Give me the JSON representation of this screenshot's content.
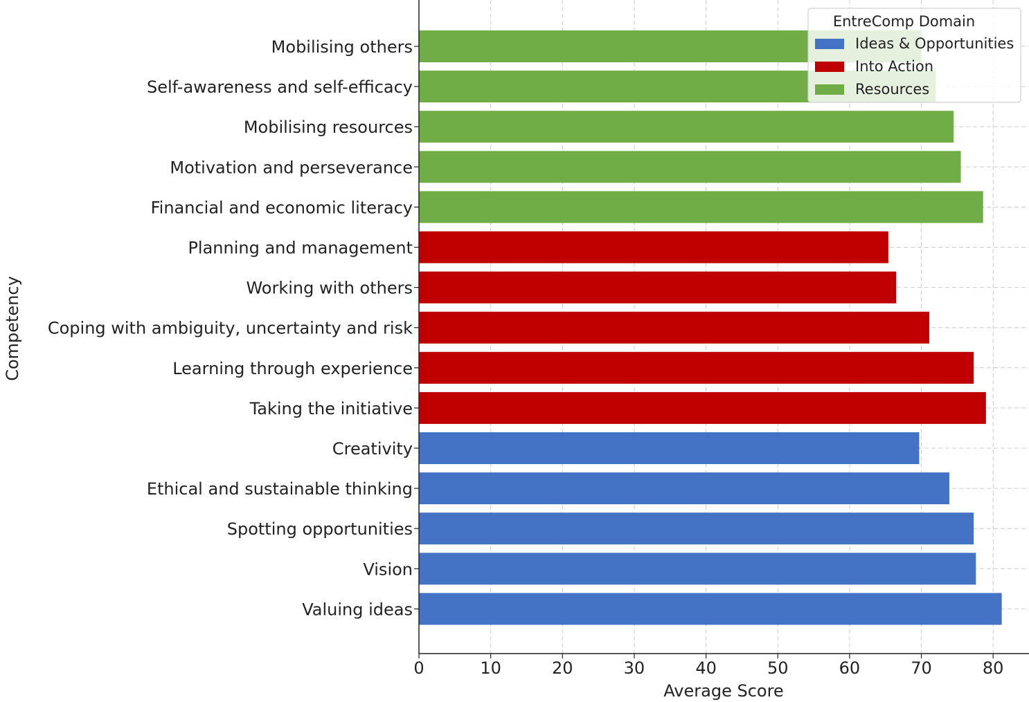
{
  "chart_data": {
    "type": "bar",
    "orientation": "horizontal",
    "xlabel": "Average Score",
    "ylabel": "Competency",
    "xlim": [
      0,
      85
    ],
    "xticks": [
      0,
      10,
      20,
      30,
      40,
      50,
      60,
      70,
      80
    ],
    "grid": true,
    "legend": {
      "title": "EntreComp Domain",
      "placement": "top-right",
      "entries": [
        {
          "name": "Ideas & Opportunities",
          "color": "#4472c4"
        },
        {
          "name": "Into Action",
          "color": "#c00000"
        },
        {
          "name": "Resources",
          "color": "#70ad47"
        }
      ]
    },
    "bars": [
      {
        "category": "Mobilising others",
        "value": 70.0,
        "domain": "Resources"
      },
      {
        "category": "Self-awareness and self-efficacy",
        "value": 72.0,
        "domain": "Resources"
      },
      {
        "category": "Mobilising resources",
        "value": 74.5,
        "domain": "Resources"
      },
      {
        "category": "Motivation and perseverance",
        "value": 75.5,
        "domain": "Resources"
      },
      {
        "category": "Financial and economic literacy",
        "value": 78.6,
        "domain": "Resources"
      },
      {
        "category": "Planning and management",
        "value": 65.4,
        "domain": "Into Action"
      },
      {
        "category": "Working with others",
        "value": 66.5,
        "domain": "Into Action"
      },
      {
        "category": "Coping with ambiguity, uncertainty and risk",
        "value": 71.1,
        "domain": "Into Action"
      },
      {
        "category": "Learning through experience",
        "value": 77.3,
        "domain": "Into Action"
      },
      {
        "category": "Taking the initiative",
        "value": 79.0,
        "domain": "Into Action"
      },
      {
        "category": "Creativity",
        "value": 69.7,
        "domain": "Ideas & Opportunities"
      },
      {
        "category": "Ethical and sustainable thinking",
        "value": 73.9,
        "domain": "Ideas & Opportunities"
      },
      {
        "category": "Spotting opportunities",
        "value": 77.3,
        "domain": "Ideas & Opportunities"
      },
      {
        "category": "Vision",
        "value": 77.6,
        "domain": "Ideas & Opportunities"
      },
      {
        "category": "Valuing ideas",
        "value": 81.2,
        "domain": "Ideas & Opportunities"
      }
    ]
  }
}
